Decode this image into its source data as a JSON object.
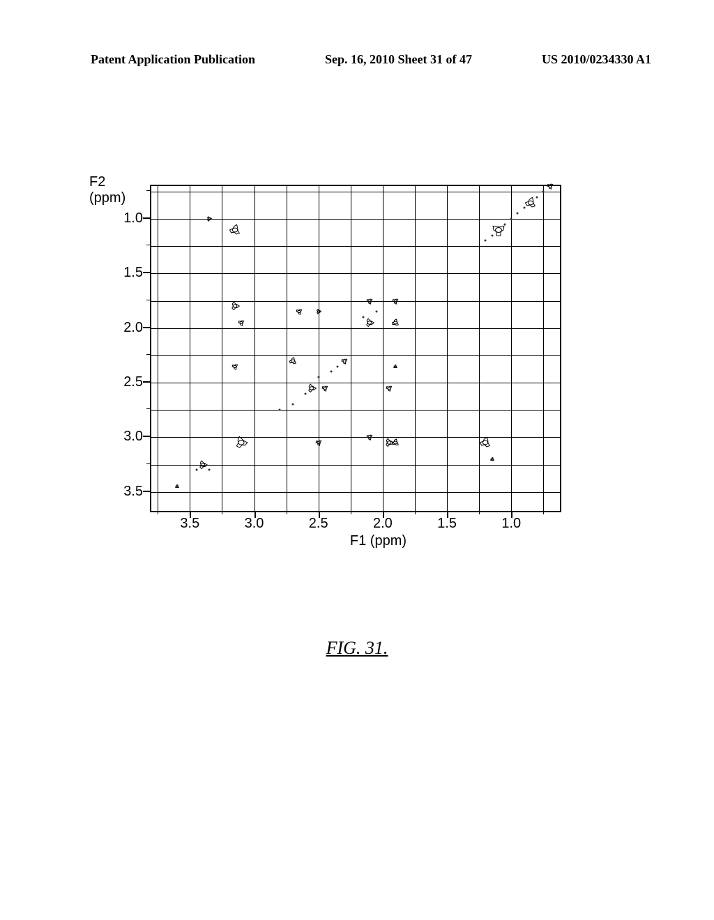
{
  "header": {
    "left": "Patent Application Publication",
    "center": "Sep. 16, 2010  Sheet 31 of 47",
    "right": "US 2010/0234330 A1"
  },
  "chart": {
    "type": "2d-nmr-contour",
    "y_axis": {
      "label_line1": "F2",
      "label_line2": "(ppm)",
      "min": 0.7,
      "max": 3.7,
      "reversed": true,
      "major_ticks": [
        1.0,
        1.5,
        2.0,
        2.5,
        3.0,
        3.5
      ],
      "tick_labels": [
        "1.0",
        "1.5",
        "2.0",
        "2.5",
        "3.0",
        "3.5"
      ]
    },
    "x_axis": {
      "label": "F1 (ppm)",
      "min": 0.6,
      "max": 3.8,
      "reversed": true,
      "major_ticks": [
        1.0,
        1.5,
        2.0,
        2.5,
        3.0,
        3.5
      ],
      "tick_labels": [
        "1.0",
        "1.5",
        "2.0",
        "2.5",
        "3.0",
        "3.5"
      ]
    },
    "grid_color": "#000000",
    "background_color": "#ffffff",
    "cross_peaks": [
      {
        "f1": 0.7,
        "f2": 0.7,
        "size": 10
      },
      {
        "f1": 0.85,
        "f2": 0.85,
        "size": 18
      },
      {
        "f1": 1.1,
        "f2": 1.1,
        "size": 22
      },
      {
        "f1": 3.35,
        "f2": 1.0,
        "size": 8
      },
      {
        "f1": 3.15,
        "f2": 1.1,
        "size": 18
      },
      {
        "f1": 3.15,
        "f2": 1.8,
        "size": 14
      },
      {
        "f1": 3.1,
        "f2": 1.95,
        "size": 10
      },
      {
        "f1": 2.65,
        "f2": 1.85,
        "size": 10
      },
      {
        "f1": 2.5,
        "f2": 1.85,
        "size": 8
      },
      {
        "f1": 2.1,
        "f2": 1.75,
        "size": 10
      },
      {
        "f1": 1.9,
        "f2": 1.75,
        "size": 10
      },
      {
        "f1": 2.1,
        "f2": 1.95,
        "size": 14
      },
      {
        "f1": 1.9,
        "f2": 1.95,
        "size": 12
      },
      {
        "f1": 2.3,
        "f2": 2.3,
        "size": 10
      },
      {
        "f1": 2.7,
        "f2": 2.3,
        "size": 12
      },
      {
        "f1": 3.15,
        "f2": 2.35,
        "size": 10
      },
      {
        "f1": 2.55,
        "f2": 2.55,
        "size": 14
      },
      {
        "f1": 2.45,
        "f2": 2.55,
        "size": 10
      },
      {
        "f1": 1.95,
        "f2": 2.55,
        "size": 10
      },
      {
        "f1": 1.9,
        "f2": 2.35,
        "size": 6
      },
      {
        "f1": 3.1,
        "f2": 3.05,
        "size": 20
      },
      {
        "f1": 2.5,
        "f2": 3.05,
        "size": 10
      },
      {
        "f1": 2.1,
        "f2": 3.0,
        "size": 10
      },
      {
        "f1": 1.95,
        "f2": 3.05,
        "size": 14
      },
      {
        "f1": 1.9,
        "f2": 3.05,
        "size": 12
      },
      {
        "f1": 1.2,
        "f2": 3.05,
        "size": 18
      },
      {
        "f1": 1.15,
        "f2": 3.2,
        "size": 6
      },
      {
        "f1": 3.4,
        "f2": 3.25,
        "size": 14
      },
      {
        "f1": 3.6,
        "f2": 3.45,
        "size": 6
      }
    ],
    "diagonal_trail": [
      {
        "f1": 0.75,
        "f2": 0.75
      },
      {
        "f1": 0.8,
        "f2": 0.8
      },
      {
        "f1": 0.9,
        "f2": 0.9
      },
      {
        "f1": 0.95,
        "f2": 0.95
      },
      {
        "f1": 1.0,
        "f2": 1.0
      },
      {
        "f1": 1.05,
        "f2": 1.05
      },
      {
        "f1": 1.15,
        "f2": 1.15
      },
      {
        "f1": 1.2,
        "f2": 1.2
      },
      {
        "f1": 2.05,
        "f2": 1.85
      },
      {
        "f1": 2.15,
        "f2": 1.9
      },
      {
        "f1": 2.35,
        "f2": 2.35
      },
      {
        "f1": 2.4,
        "f2": 2.4
      },
      {
        "f1": 2.5,
        "f2": 2.45
      },
      {
        "f1": 2.6,
        "f2": 2.6
      },
      {
        "f1": 2.7,
        "f2": 2.7
      },
      {
        "f1": 2.8,
        "f2": 2.75
      },
      {
        "f1": 3.35,
        "f2": 3.3
      },
      {
        "f1": 3.45,
        "f2": 3.3
      }
    ]
  },
  "figure_caption": "FIG. 31."
}
